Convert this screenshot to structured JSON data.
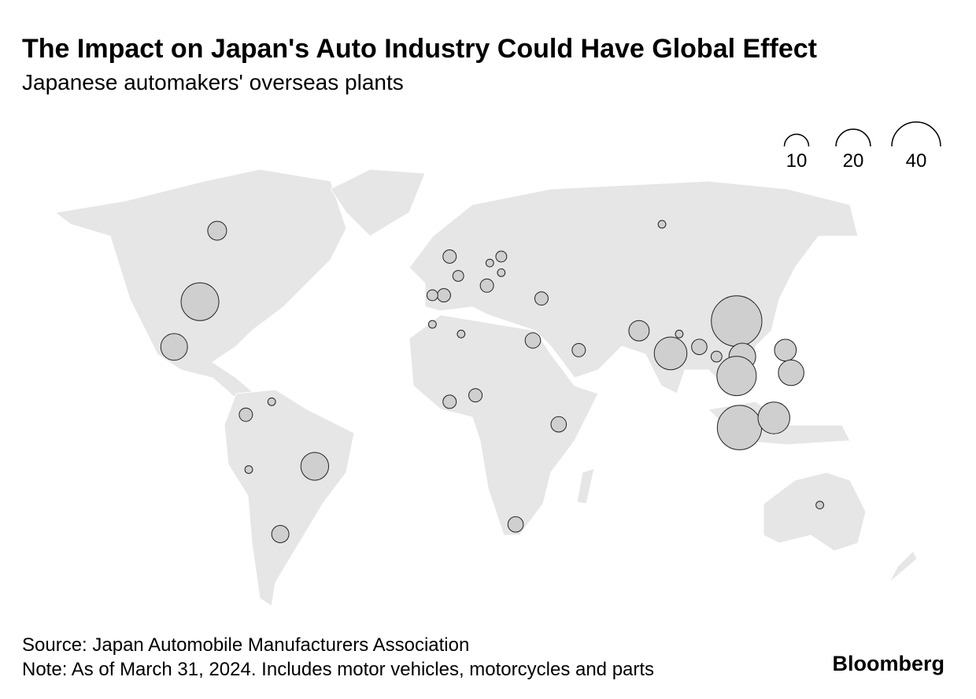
{
  "chart_data": {
    "type": "bubble-map",
    "title": "The Impact on Japan's Auto Industry Could Have Global Effect",
    "subtitle": "Japanese automakers' overseas plants",
    "size_legend": [
      10,
      20,
      40
    ],
    "fill": "#cfcfcf",
    "points": [
      {
        "lon": -80,
        "lat": 59,
        "value": 6
      },
      {
        "lon": -86,
        "lat": 37,
        "value": 24
      },
      {
        "lon": -95,
        "lat": 23,
        "value": 12
      },
      {
        "lon": -70,
        "lat": 2,
        "value": 3
      },
      {
        "lon": -61,
        "lat": 6,
        "value": 1
      },
      {
        "lon": -69,
        "lat": -15,
        "value": 1
      },
      {
        "lon": -46,
        "lat": -14,
        "value": 13
      },
      {
        "lon": -58,
        "lat": -35,
        "value": 5
      },
      {
        "lon": 1,
        "lat": 51,
        "value": 3
      },
      {
        "lon": 4,
        "lat": 45,
        "value": 2
      },
      {
        "lon": 15,
        "lat": 49,
        "value": 1
      },
      {
        "lon": 19,
        "lat": 51,
        "value": 2
      },
      {
        "lon": 19,
        "lat": 46,
        "value": 1
      },
      {
        "lon": 14,
        "lat": 42,
        "value": 3
      },
      {
        "lon": -1,
        "lat": 39,
        "value": 3
      },
      {
        "lon": -5,
        "lat": 39,
        "value": 2
      },
      {
        "lon": 33,
        "lat": 38,
        "value": 3
      },
      {
        "lon": -5,
        "lat": 30,
        "value": 1
      },
      {
        "lon": 5,
        "lat": 27,
        "value": 1
      },
      {
        "lon": 30,
        "lat": 25,
        "value": 4
      },
      {
        "lon": 46,
        "lat": 22,
        "value": 3
      },
      {
        "lon": 67,
        "lat": 28,
        "value": 7
      },
      {
        "lon": 78,
        "lat": 21,
        "value": 18
      },
      {
        "lon": 81,
        "lat": 27,
        "value": 1
      },
      {
        "lon": 88,
        "lat": 23,
        "value": 4
      },
      {
        "lon": 94,
        "lat": 20,
        "value": 2
      },
      {
        "lon": 101,
        "lat": 31,
        "value": 43
      },
      {
        "lon": 103,
        "lat": 20,
        "value": 12
      },
      {
        "lon": 101,
        "lat": 14,
        "value": 26
      },
      {
        "lon": 118,
        "lat": 22,
        "value": 8
      },
      {
        "lon": 120,
        "lat": 15,
        "value": 11
      },
      {
        "lon": 102,
        "lat": -2,
        "value": 33
      },
      {
        "lon": 114,
        "lat": 1,
        "value": 17
      },
      {
        "lon": 10,
        "lat": 8,
        "value": 3
      },
      {
        "lon": 1,
        "lat": 6,
        "value": 3
      },
      {
        "lon": 39,
        "lat": -1,
        "value": 4
      },
      {
        "lon": 24,
        "lat": -32,
        "value": 4
      },
      {
        "lon": 75,
        "lat": 61,
        "value": 1
      },
      {
        "lon": 130,
        "lat": -26,
        "value": 1
      }
    ],
    "source": "Source: Japan Automobile Manufacturers Association",
    "note": "Note: As of March 31, 2024. Includes motor vehicles, motorcycles and parts"
  },
  "brand": "Bloomberg"
}
